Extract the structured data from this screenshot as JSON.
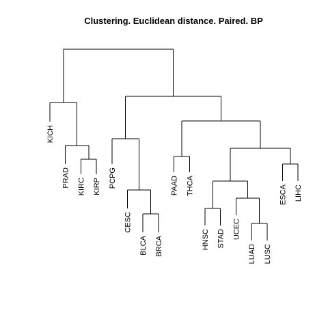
{
  "title": "Clustering. Euclidean  distance. Paired. BP",
  "leaves": [
    "KICH",
    "PRAD",
    "KIRC",
    "KIRP",
    "PCPG",
    "CESC",
    "BLCA",
    "BRCA",
    "PAAD",
    "THCA",
    "HNSC",
    "STAD",
    "UCEC",
    "LUAD",
    "LUSC",
    "ESCA",
    "LIHC"
  ],
  "tree": {
    "children": [
      {
        "children": [
          {
            "leaf": "KICH"
          },
          {
            "children": [
              {
                "leaf": "PRAD"
              },
              {
                "children": [
                  {
                    "leaf": "KIRC"
                  },
                  {
                    "leaf": "KIRP"
                  }
                ]
              }
            ]
          }
        ]
      },
      {
        "children": [
          {
            "children": [
              {
                "leaf": "PCPG"
              },
              {
                "children": [
                  {
                    "leaf": "CESC"
                  },
                  {
                    "children": [
                      {
                        "leaf": "BLCA"
                      },
                      {
                        "leaf": "BRCA"
                      }
                    ]
                  }
                ]
              }
            ]
          },
          {
            "children": [
              {
                "children": [
                  {
                    "leaf": "PAAD"
                  },
                  {
                    "leaf": "THCA"
                  }
                ]
              },
              {
                "children": [
                  {
                    "children": [
                      {
                        "children": [
                          {
                            "leaf": "HNSC"
                          },
                          {
                            "leaf": "STAD"
                          }
                        ]
                      },
                      {
                        "children": [
                          {
                            "leaf": "UCEC"
                          },
                          {
                            "children": [
                              {
                                "leaf": "LUAD"
                              },
                              {
                                "leaf": "LUSC"
                              }
                            ]
                          }
                        ]
                      }
                    ]
                  },
                  {
                    "children": [
                      {
                        "leaf": "ESCA"
                      },
                      {
                        "leaf": "LIHC"
                      }
                    ]
                  }
                ]
              }
            ]
          }
        ]
      }
    ]
  }
}
